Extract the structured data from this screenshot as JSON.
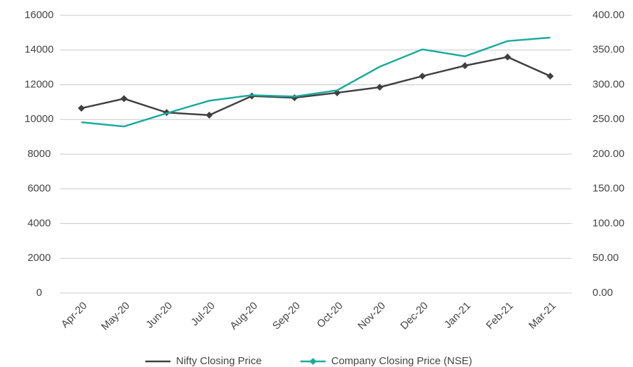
{
  "chart_data": {
    "type": "line",
    "categories": [
      "Apr-20",
      "May-20",
      "Jun-20",
      "Jul-20",
      "Aug-20",
      "Sep-20",
      "Oct-20",
      "Nov-20",
      "Dec-20",
      "Jan-21",
      "Feb-21",
      "Mar-21"
    ],
    "series": [
      {
        "name": "Nifty Closing Price",
        "color": "#404040",
        "axis": "y",
        "values": [
          10650,
          11200,
          10400,
          10250,
          11350,
          11250,
          11540,
          11860,
          12500,
          13100,
          13600,
          12500
        ]
      },
      {
        "name": "Company Closing Price (NSE)",
        "color": "#1aab9b",
        "axis": "y2",
        "values": [
          246,
          240,
          259,
          277,
          285,
          283,
          292,
          326,
          351,
          341,
          363,
          368
        ]
      }
    ],
    "ylim": [
      0,
      16000
    ],
    "yticks": [
      0,
      2000,
      4000,
      6000,
      8000,
      10000,
      12000,
      14000,
      16000
    ],
    "y2lim": [
      0,
      400
    ],
    "y2ticks": [
      {
        "value": 0,
        "label": "0.00"
      },
      {
        "value": 50,
        "label": "50.00"
      },
      {
        "value": 100,
        "label": "100.00"
      },
      {
        "value": 150,
        "label": "150.00"
      },
      {
        "value": 200,
        "label": "200.00"
      },
      {
        "value": 250,
        "label": "250.00"
      },
      {
        "value": 300,
        "label": "300.00"
      },
      {
        "value": 350,
        "label": "350.00"
      },
      {
        "value": 400,
        "label": "400.00"
      }
    ],
    "grid": true,
    "legend": "bottom"
  }
}
